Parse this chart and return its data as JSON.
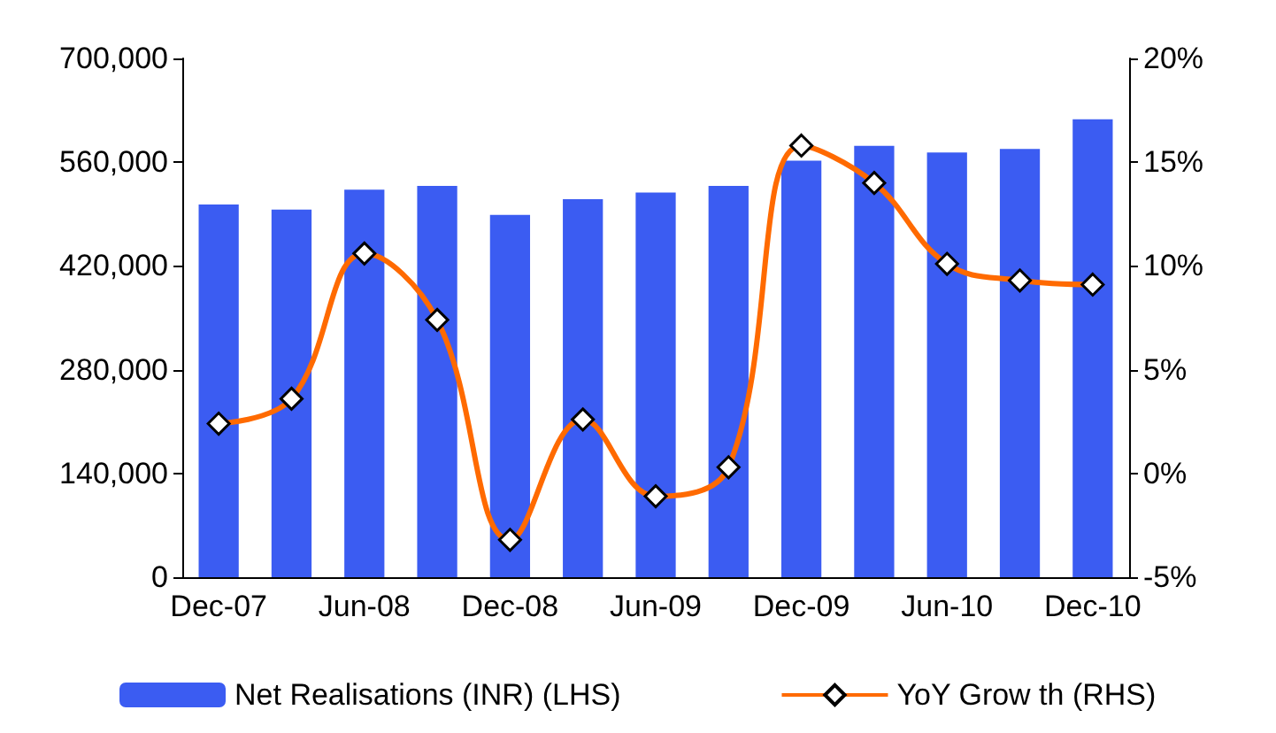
{
  "chart_data": {
    "type": "bar",
    "categories": [
      "Dec-07",
      null,
      "Jun-08",
      null,
      "Dec-08",
      null,
      "Jun-09",
      null,
      "Dec-09",
      null,
      "Jun-10",
      null,
      "Dec-10"
    ],
    "series": [
      {
        "name": "Net Realisations (INR) (LHS)",
        "color": "#3b5cf2",
        "values": [
          503000,
          496000,
          523000,
          528000,
          489000,
          510000,
          519000,
          528000,
          562000,
          582000,
          573000,
          578000,
          618000
        ]
      },
      {
        "name": "YoY Grow th (RHS)",
        "type": "line",
        "axis": "y2",
        "color": "#ff6a00",
        "marker": "diamond",
        "values": [
          2.4,
          3.6,
          10.6,
          7.4,
          -3.2,
          2.6,
          -1.1,
          0.3,
          15.8,
          14.0,
          10.1,
          9.3,
          9.1
        ]
      }
    ],
    "ylim": [
      0,
      700000
    ],
    "yticks": [
      {
        "value": 0,
        "label": "0"
      },
      {
        "value": 140000,
        "label": "140,000"
      },
      {
        "value": 280000,
        "label": "280,000"
      },
      {
        "value": 420000,
        "label": "420,000"
      },
      {
        "value": 560000,
        "label": "560,000"
      },
      {
        "value": 700000,
        "label": "700,000"
      }
    ],
    "y2lim": [
      -5,
      20
    ],
    "y2ticks": [
      {
        "value": -5,
        "label": "-5%"
      },
      {
        "value": 0,
        "label": "0%"
      },
      {
        "value": 5,
        "label": "5%"
      },
      {
        "value": 10,
        "label": "10%"
      },
      {
        "value": 15,
        "label": "15%"
      },
      {
        "value": 20,
        "label": "20%"
      }
    ],
    "grid": false,
    "legend": "bottom"
  }
}
